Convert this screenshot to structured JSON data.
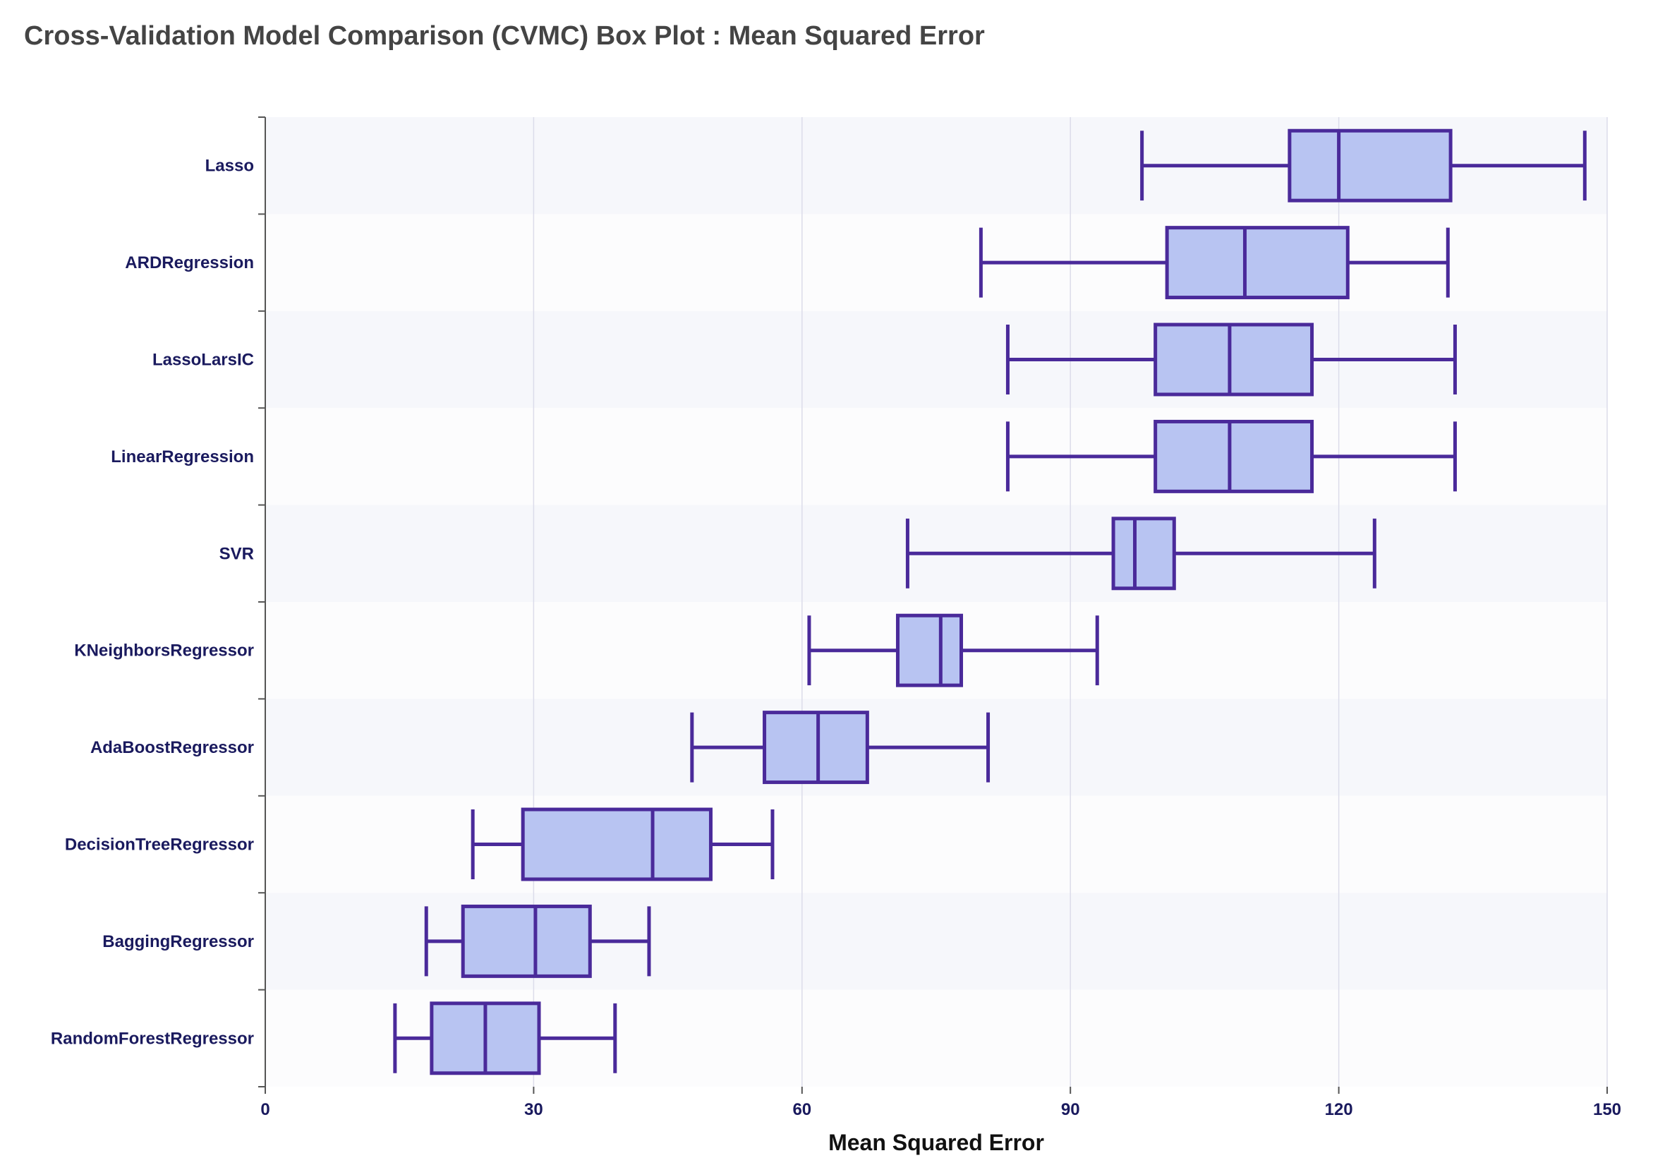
{
  "chart_data": {
    "type": "box",
    "title": "Cross-Validation Model Comparison (CVMC) Box Plot : Mean Squared Error",
    "xlabel": "Mean Squared Error",
    "ylabel": "",
    "xlim": [
      0,
      150
    ],
    "xticks": [
      0,
      30,
      60,
      90,
      120,
      150
    ],
    "grid": "vertical",
    "orientation": "horizontal",
    "colors": {
      "box_fill": "#b8c4f2",
      "box_stroke": "#4a2a9a",
      "band_alt": "#f6f7fb",
      "band": "#fcfcfd",
      "grid": "#dcdcea"
    },
    "categories": [
      "Lasso",
      "ARDRegression",
      "LassoLarsIC",
      "LinearRegression",
      "SVR",
      "KNeighborsRegressor",
      "AdaBoostRegressor",
      "DecisionTreeRegressor",
      "BaggingRegressor",
      "RandomForestRegressor"
    ],
    "boxes": [
      {
        "name": "Lasso",
        "min": 98.0,
        "q1": 114.5,
        "median": 120.0,
        "q3": 132.5,
        "max": 147.5
      },
      {
        "name": "ARDRegression",
        "min": 80.0,
        "q1": 100.8,
        "median": 109.5,
        "q3": 121.0,
        "max": 132.2
      },
      {
        "name": "LassoLarsIC",
        "min": 83.0,
        "q1": 99.5,
        "median": 107.8,
        "q3": 117.0,
        "max": 133.0
      },
      {
        "name": "LinearRegression",
        "min": 83.0,
        "q1": 99.5,
        "median": 107.8,
        "q3": 117.0,
        "max": 133.0
      },
      {
        "name": "SVR",
        "min": 71.8,
        "q1": 94.8,
        "median": 97.2,
        "q3": 101.6,
        "max": 124.0
      },
      {
        "name": "KNeighborsRegressor",
        "min": 60.8,
        "q1": 70.7,
        "median": 75.5,
        "q3": 77.8,
        "max": 93.0
      },
      {
        "name": "AdaBoostRegressor",
        "min": 47.7,
        "q1": 55.8,
        "median": 61.8,
        "q3": 67.3,
        "max": 80.8
      },
      {
        "name": "DecisionTreeRegressor",
        "min": 23.2,
        "q1": 28.8,
        "median": 43.3,
        "q3": 49.8,
        "max": 56.7
      },
      {
        "name": "BaggingRegressor",
        "min": 18.0,
        "q1": 22.1,
        "median": 30.2,
        "q3": 36.3,
        "max": 42.9
      },
      {
        "name": "RandomForestRegressor",
        "min": 14.5,
        "q1": 18.6,
        "median": 24.6,
        "q3": 30.6,
        "max": 39.1
      }
    ]
  }
}
